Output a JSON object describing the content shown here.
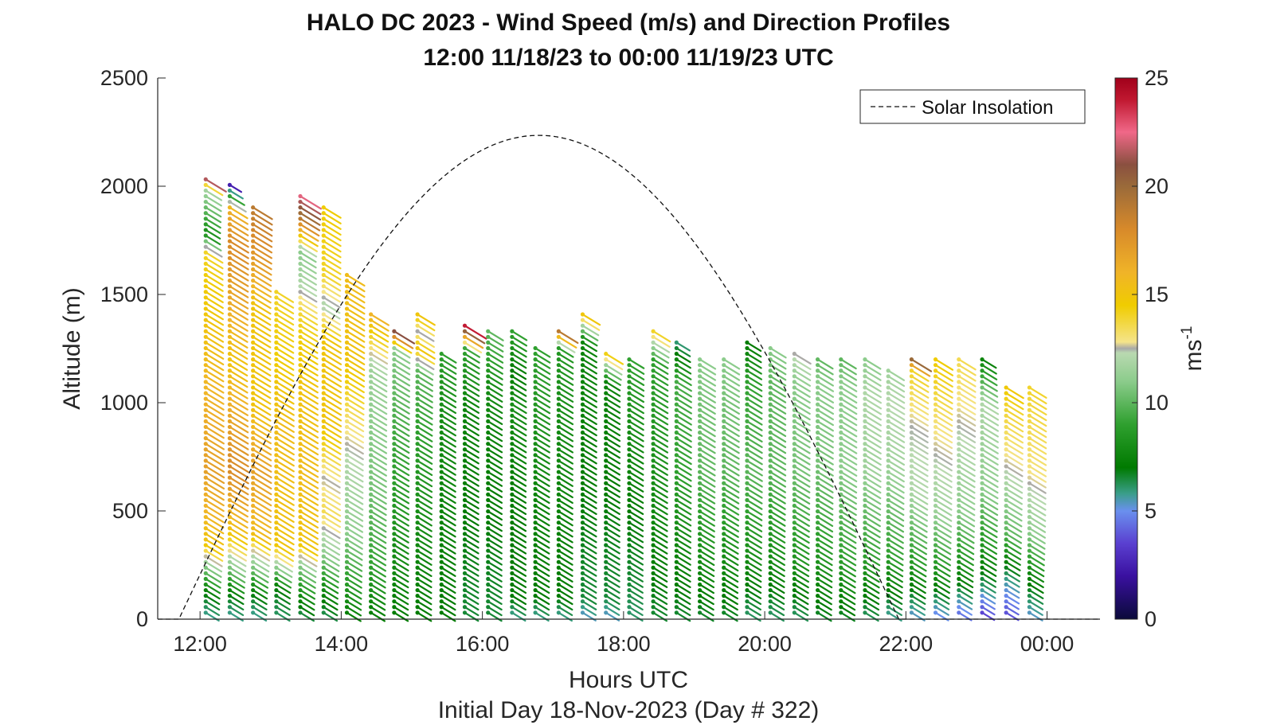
{
  "chart_data": {
    "type": "barb-profile",
    "title": "HALO DC 2023 - Wind Speed (m/s) and Direction Profiles",
    "subtitle": "12:00 11/18/23 to 00:00 11/19/23  UTC",
    "xlabel": "Hours UTC",
    "xlabel2": "Initial Day 18-Nov-2023 (Day # 322)",
    "ylabel": "Altitude (m)",
    "xlim": [
      11.4,
      24.75
    ],
    "ylim": [
      0,
      2500
    ],
    "x_ticks": [
      12,
      14,
      16,
      18,
      20,
      22,
      24
    ],
    "x_tick_labels": [
      "12:00",
      "14:00",
      "16:00",
      "18:00",
      "20:00",
      "22:00",
      "00:00"
    ],
    "y_ticks": [
      0,
      500,
      1000,
      1500,
      2000,
      2500
    ],
    "y_tick_labels": [
      "0",
      "500",
      "1000",
      "1500",
      "2000",
      "2500"
    ],
    "legend": {
      "entries": [
        "Solar Insolation"
      ],
      "location": "top-right"
    },
    "colorbar": {
      "label": "ms",
      "label_exponent": "-1",
      "range": [
        0,
        25
      ],
      "ticks": [
        0,
        5,
        10,
        15,
        20,
        25
      ],
      "tick_labels": [
        "0",
        "5",
        "10",
        "15",
        "20",
        "25"
      ],
      "stops": [
        [
          0,
          "#0a0a3a"
        ],
        [
          2,
          "#3a10a0"
        ],
        [
          3.5,
          "#5a40d0"
        ],
        [
          5,
          "#6a90ee"
        ],
        [
          5.8,
          "#3a9e8a"
        ],
        [
          7,
          "#007a00"
        ],
        [
          9,
          "#2fa02f"
        ],
        [
          11,
          "#8ccc8c"
        ],
        [
          12.3,
          "#b9d9b0"
        ],
        [
          12.5,
          "#a8a8a8"
        ],
        [
          12.8,
          "#f5e48a"
        ],
        [
          14.5,
          "#f0cc00"
        ],
        [
          16,
          "#f0b428"
        ],
        [
          18,
          "#d88a2a"
        ],
        [
          20,
          "#9a6a3a"
        ],
        [
          21,
          "#8a5040"
        ],
        [
          22.5,
          "#f06888"
        ],
        [
          24,
          "#c01830"
        ],
        [
          25,
          "#a0001a"
        ]
      ]
    },
    "solar_insolation": {
      "sunrise_hour": 11.7,
      "sunset_hour": 21.9,
      "peak_hour": 16.8,
      "peak_altitude": 2235
    },
    "profiles": [
      {
        "t": 12.08,
        "top": 2040,
        "wind": [
          [
            0,
            5.5
          ],
          [
            120,
            7
          ],
          [
            250,
            11
          ],
          [
            350,
            15
          ],
          [
            700,
            17
          ],
          [
            1200,
            15.5
          ],
          [
            1550,
            14.5
          ],
          [
            1700,
            14
          ],
          [
            1780,
            8
          ],
          [
            2000,
            12
          ],
          [
            2040,
            24
          ]
        ]
      },
      {
        "t": 12.42,
        "top": 2010,
        "wind": [
          [
            0,
            5.5
          ],
          [
            120,
            7
          ],
          [
            250,
            11
          ],
          [
            400,
            15
          ],
          [
            700,
            18
          ],
          [
            1200,
            15
          ],
          [
            1750,
            18
          ],
          [
            1900,
            16
          ],
          [
            2010,
            2
          ]
        ]
      },
      {
        "t": 12.75,
        "top": 1910,
        "wind": [
          [
            0,
            5.5
          ],
          [
            120,
            7
          ],
          [
            250,
            11
          ],
          [
            330,
            13
          ],
          [
            400,
            15.5
          ],
          [
            700,
            17
          ],
          [
            1000,
            15
          ],
          [
            1450,
            15
          ],
          [
            1700,
            17.5
          ],
          [
            1910,
            19
          ]
        ]
      },
      {
        "t": 13.08,
        "top": 1530,
        "wind": [
          [
            0,
            6
          ],
          [
            150,
            7
          ],
          [
            250,
            11.5
          ],
          [
            350,
            15
          ],
          [
            900,
            15.5
          ],
          [
            1200,
            14.5
          ],
          [
            1530,
            14
          ]
        ]
      },
      {
        "t": 13.42,
        "top": 1960,
        "wind": [
          [
            0,
            6
          ],
          [
            120,
            8
          ],
          [
            250,
            11
          ],
          [
            350,
            15
          ],
          [
            700,
            15.5
          ],
          [
            1100,
            15
          ],
          [
            1400,
            14
          ],
          [
            1550,
            12
          ],
          [
            1700,
            11
          ],
          [
            1850,
            19
          ],
          [
            1960,
            22.5
          ]
        ]
      },
      {
        "t": 13.75,
        "top": 1910,
        "wind": [
          [
            0,
            6
          ],
          [
            150,
            8
          ],
          [
            300,
            11
          ],
          [
            500,
            13.5
          ],
          [
            650,
            12.5
          ],
          [
            900,
            15
          ],
          [
            1300,
            15
          ],
          [
            1450,
            12
          ],
          [
            1600,
            14
          ],
          [
            1910,
            14.5
          ]
        ]
      },
      {
        "t": 14.08,
        "top": 1600,
        "wind": [
          [
            0,
            7
          ],
          [
            200,
            9
          ],
          [
            400,
            11
          ],
          [
            700,
            12
          ],
          [
            900,
            13
          ],
          [
            1200,
            15
          ],
          [
            1600,
            15.5
          ]
        ]
      },
      {
        "t": 14.42,
        "top": 1410,
        "wind": [
          [
            0,
            7
          ],
          [
            250,
            9
          ],
          [
            600,
            10.5
          ],
          [
            900,
            11
          ],
          [
            1150,
            11.5
          ],
          [
            1250,
            13
          ],
          [
            1410,
            16
          ]
        ]
      },
      {
        "t": 14.75,
        "top": 1330,
        "wind": [
          [
            0,
            7
          ],
          [
            500,
            8.5
          ],
          [
            900,
            9.5
          ],
          [
            1250,
            11
          ],
          [
            1330,
            21
          ]
        ]
      },
      {
        "t": 15.08,
        "top": 1410,
        "wind": [
          [
            0,
            7
          ],
          [
            500,
            8
          ],
          [
            900,
            9
          ],
          [
            1150,
            10
          ],
          [
            1250,
            15
          ],
          [
            1330,
            12.5
          ],
          [
            1410,
            15
          ]
        ]
      },
      {
        "t": 15.42,
        "top": 1250,
        "wind": [
          [
            0,
            7
          ],
          [
            600,
            7.5
          ],
          [
            1000,
            8
          ],
          [
            1250,
            9
          ]
        ]
      },
      {
        "t": 15.75,
        "top": 1360,
        "wind": [
          [
            0,
            6.5
          ],
          [
            500,
            7
          ],
          [
            1000,
            7.5
          ],
          [
            1250,
            9
          ],
          [
            1360,
            24.5
          ]
        ]
      },
      {
        "t": 16.08,
        "top": 1330,
        "wind": [
          [
            0,
            6.5
          ],
          [
            500,
            7
          ],
          [
            900,
            7.5
          ],
          [
            1100,
            8
          ],
          [
            1330,
            10
          ]
        ]
      },
      {
        "t": 16.42,
        "top": 1330,
        "wind": [
          [
            0,
            5.5
          ],
          [
            100,
            7
          ],
          [
            600,
            7
          ],
          [
            1000,
            8
          ],
          [
            1150,
            7
          ],
          [
            1330,
            9
          ]
        ]
      },
      {
        "t": 16.75,
        "top": 1260,
        "wind": [
          [
            0,
            5.5
          ],
          [
            100,
            7
          ],
          [
            600,
            7.5
          ],
          [
            1000,
            8.5
          ],
          [
            1260,
            9
          ]
        ]
      },
      {
        "t": 17.08,
        "top": 1330,
        "wind": [
          [
            0,
            5.5
          ],
          [
            100,
            7
          ],
          [
            600,
            7.5
          ],
          [
            1000,
            8
          ],
          [
            1250,
            8.5
          ],
          [
            1330,
            19
          ]
        ]
      },
      {
        "t": 17.42,
        "top": 1410,
        "wind": [
          [
            0,
            5
          ],
          [
            100,
            6.5
          ],
          [
            600,
            7
          ],
          [
            1100,
            7.5
          ],
          [
            1290,
            7.5
          ],
          [
            1410,
            15
          ]
        ]
      },
      {
        "t": 17.75,
        "top": 1240,
        "wind": [
          [
            0,
            5
          ],
          [
            100,
            6.5
          ],
          [
            600,
            7
          ],
          [
            1100,
            7.5
          ],
          [
            1240,
            15
          ]
        ]
      },
      {
        "t": 18.08,
        "top": 1200,
        "wind": [
          [
            0,
            6
          ],
          [
            150,
            6.5
          ],
          [
            500,
            7
          ],
          [
            900,
            8
          ],
          [
            1200,
            9
          ]
        ]
      },
      {
        "t": 18.42,
        "top": 1330,
        "wind": [
          [
            0,
            6.5
          ],
          [
            400,
            7.5
          ],
          [
            900,
            8.5
          ],
          [
            1200,
            9
          ],
          [
            1330,
            14
          ]
        ]
      },
      {
        "t": 18.75,
        "top": 1290,
        "wind": [
          [
            0,
            6.5
          ],
          [
            300,
            7.5
          ],
          [
            700,
            9
          ],
          [
            1100,
            9.5
          ],
          [
            1290,
            5.8
          ]
        ]
      },
      {
        "t": 19.08,
        "top": 1200,
        "wind": [
          [
            0,
            6.5
          ],
          [
            300,
            8
          ],
          [
            700,
            10
          ],
          [
            1000,
            10.5
          ],
          [
            1200,
            11
          ]
        ]
      },
      {
        "t": 19.42,
        "top": 1200,
        "wind": [
          [
            0,
            6.5
          ],
          [
            300,
            8
          ],
          [
            700,
            10
          ],
          [
            1000,
            10.5
          ],
          [
            1200,
            11
          ]
        ]
      },
      {
        "t": 19.75,
        "top": 1290,
        "wind": [
          [
            0,
            6
          ],
          [
            300,
            8
          ],
          [
            700,
            10
          ],
          [
            1100,
            9
          ],
          [
            1290,
            7
          ]
        ]
      },
      {
        "t": 20.08,
        "top": 1260,
        "wind": [
          [
            0,
            6
          ],
          [
            300,
            8
          ],
          [
            700,
            10
          ],
          [
            1100,
            10
          ],
          [
            1260,
            11
          ]
        ]
      },
      {
        "t": 20.42,
        "top": 1250,
        "wind": [
          [
            0,
            6
          ],
          [
            300,
            8.5
          ],
          [
            700,
            10.5
          ],
          [
            1100,
            11
          ],
          [
            1250,
            12.8
          ]
        ]
      },
      {
        "t": 20.75,
        "top": 1210,
        "wind": [
          [
            0,
            6.5
          ],
          [
            300,
            8.5
          ],
          [
            700,
            10.5
          ],
          [
            1100,
            11
          ],
          [
            1210,
            10
          ]
        ]
      },
      {
        "t": 21.08,
        "top": 1200,
        "wind": [
          [
            0,
            6.5
          ],
          [
            300,
            9
          ],
          [
            700,
            11
          ],
          [
            1100,
            11
          ],
          [
            1200,
            10
          ]
        ]
      },
      {
        "t": 21.42,
        "top": 1200,
        "wind": [
          [
            0,
            6
          ],
          [
            300,
            9
          ],
          [
            700,
            11.5
          ],
          [
            1050,
            12
          ],
          [
            1200,
            11
          ]
        ]
      },
      {
        "t": 21.75,
        "top": 1170,
        "wind": [
          [
            0,
            5.5
          ],
          [
            300,
            9
          ],
          [
            700,
            11.5
          ],
          [
            1000,
            12.2
          ],
          [
            1170,
            11.5
          ]
        ]
      },
      {
        "t": 22.08,
        "top": 1200,
        "wind": [
          [
            0,
            5
          ],
          [
            250,
            8.5
          ],
          [
            600,
            12
          ],
          [
            900,
            12.5
          ],
          [
            1150,
            14
          ],
          [
            1200,
            20
          ]
        ]
      },
      {
        "t": 22.42,
        "top": 1200,
        "wind": [
          [
            0,
            4.5
          ],
          [
            200,
            8
          ],
          [
            500,
            11.5
          ],
          [
            900,
            13
          ],
          [
            1200,
            14.5
          ]
        ]
      },
      {
        "t": 22.75,
        "top": 1200,
        "wind": [
          [
            0,
            4
          ],
          [
            200,
            7.5
          ],
          [
            500,
            11
          ],
          [
            900,
            12.5
          ],
          [
            1200,
            13.5
          ]
        ]
      },
      {
        "t": 23.08,
        "top": 1200,
        "wind": [
          [
            0,
            3
          ],
          [
            150,
            6
          ],
          [
            300,
            8
          ],
          [
            600,
            11
          ],
          [
            1000,
            12
          ],
          [
            1200,
            7.5
          ]
        ]
      },
      {
        "t": 23.42,
        "top": 1090,
        "wind": [
          [
            0,
            3.5
          ],
          [
            200,
            6
          ],
          [
            400,
            10
          ],
          [
            700,
            12.5
          ],
          [
            1000,
            14
          ],
          [
            1090,
            15
          ]
        ]
      },
      {
        "t": 23.75,
        "top": 1090,
        "wind": [
          [
            0,
            5
          ],
          [
            200,
            7.5
          ],
          [
            400,
            11
          ],
          [
            700,
            13
          ],
          [
            1090,
            14
          ]
        ]
      }
    ]
  }
}
